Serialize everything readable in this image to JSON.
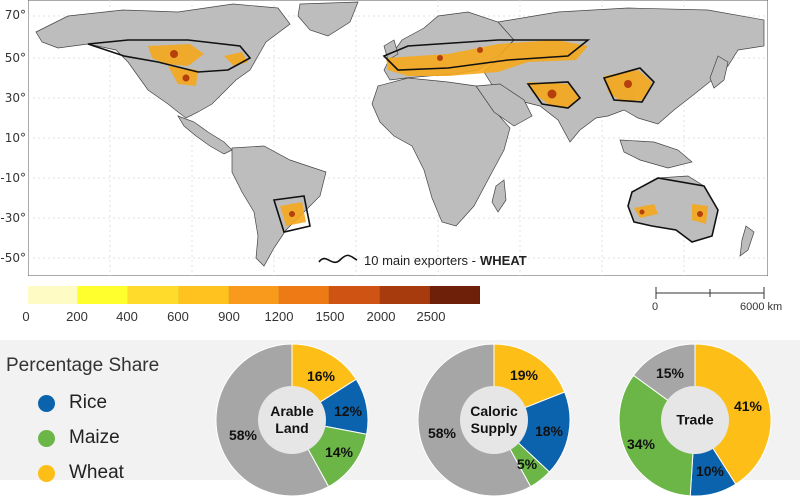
{
  "map": {
    "lat_labels": [
      "70°",
      "50°",
      "30°",
      "10°",
      "-10°",
      "-30°",
      "-50°"
    ],
    "exporters_legend": {
      "prefix": "10 main exporters - ",
      "crop": "WHEAT"
    },
    "density_scale": {
      "ticks": [
        "0",
        "200",
        "400",
        "600",
        "900",
        "1200",
        "1500",
        "2000",
        "2500"
      ],
      "colors": [
        "#fffbc4",
        "#ffff2e",
        "#ffdb2b",
        "#ffc21f",
        "#fa9a1c",
        "#ee7a16",
        "#cf5312",
        "#a83b0e",
        "#6e2108"
      ]
    },
    "distance_scale": {
      "start": "0",
      "end": "6000 km"
    }
  },
  "share_panel": {
    "title": "Percentage Share",
    "legend": [
      {
        "label": "Rice",
        "color": "#0c63ad"
      },
      {
        "label": "Maize",
        "color": "#6cb547"
      },
      {
        "label": "Wheat",
        "color": "#fdbe17"
      }
    ],
    "other_color": "#a6a6a6"
  },
  "chart_data": [
    {
      "type": "pie",
      "title_lines": [
        "Arable",
        "Land"
      ],
      "categories": [
        "Wheat",
        "Rice",
        "Maize",
        "Other"
      ],
      "values": [
        16,
        12,
        14,
        58
      ],
      "labels": [
        "16%",
        "12%",
        "14%",
        "58%"
      ]
    },
    {
      "type": "pie",
      "title_lines": [
        "Caloric",
        "Supply"
      ],
      "categories": [
        "Wheat",
        "Rice",
        "Maize",
        "Other"
      ],
      "values": [
        19,
        18,
        5,
        58
      ],
      "labels": [
        "19%",
        "18%",
        "5%",
        "58%"
      ]
    },
    {
      "type": "pie",
      "title_lines": [
        "Trade"
      ],
      "categories": [
        "Wheat",
        "Rice",
        "Maize",
        "Other"
      ],
      "values": [
        41,
        10,
        34,
        15
      ],
      "labels": [
        "41%",
        "10%",
        "34%",
        "15%"
      ]
    }
  ]
}
